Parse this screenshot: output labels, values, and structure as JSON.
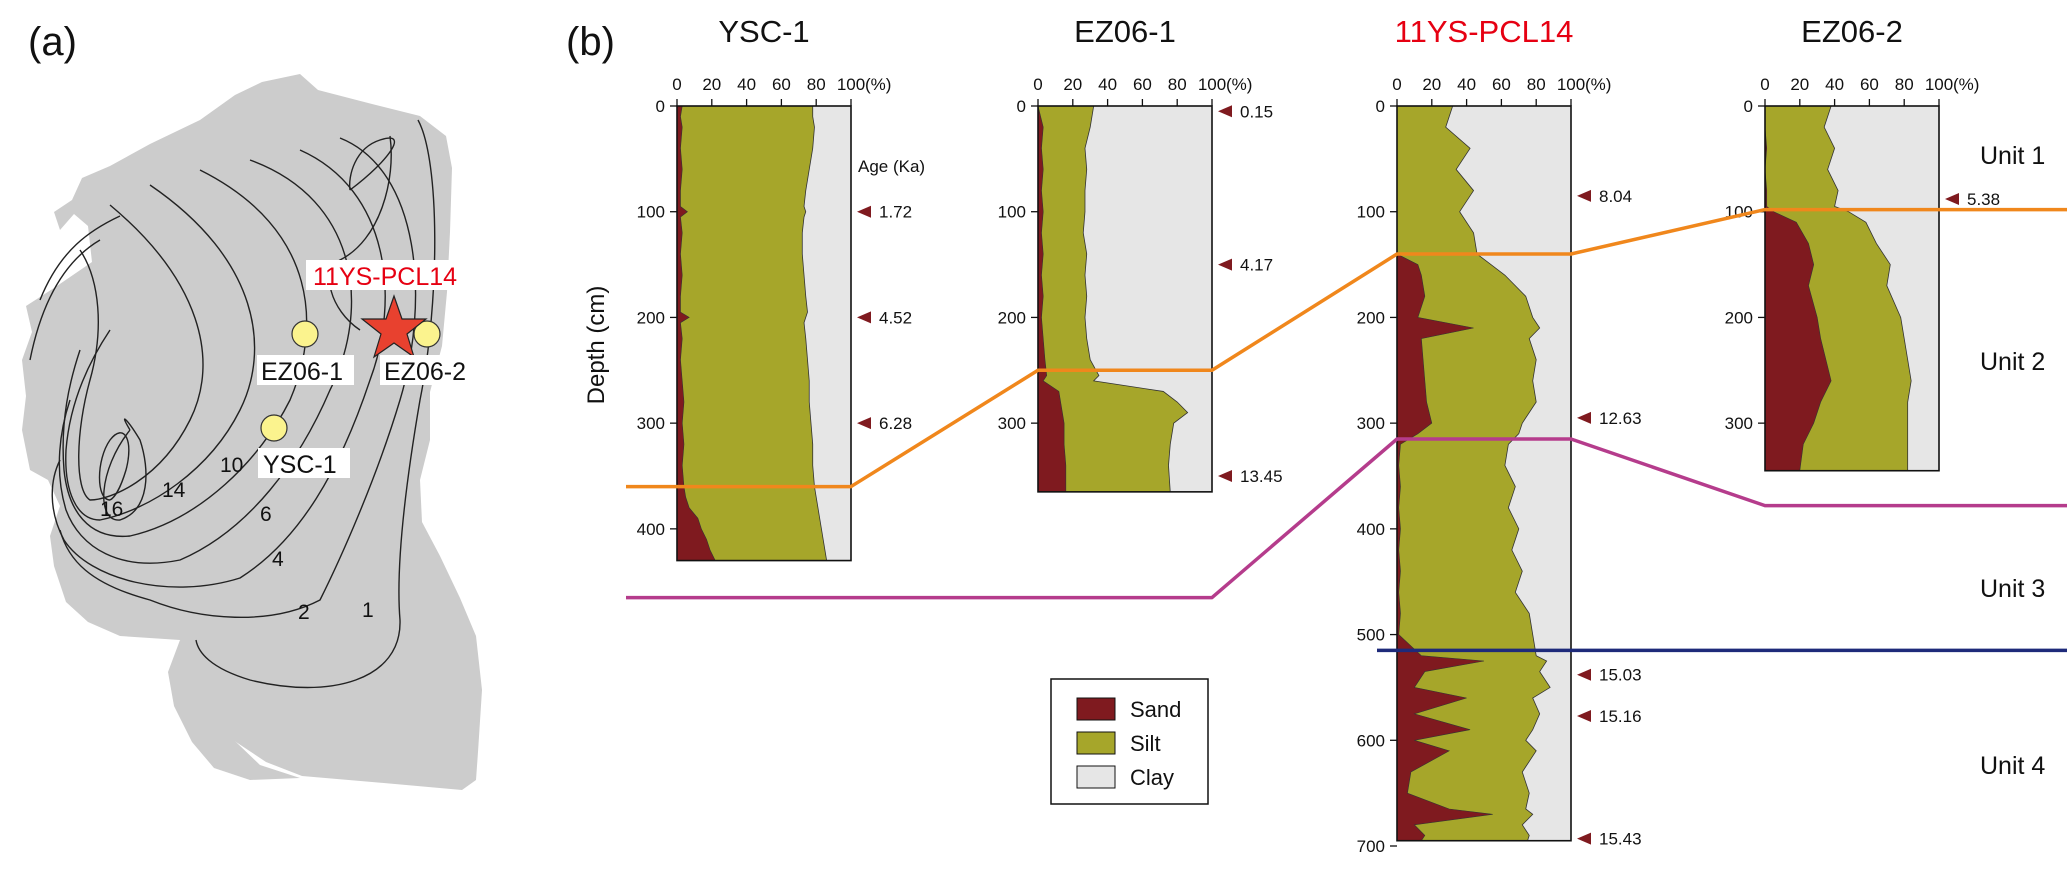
{
  "panels": {
    "a": "(a)",
    "b": "(b)"
  },
  "map": {
    "featured_label": "11YS-PCL14",
    "sites": [
      {
        "name": "EZ06-1"
      },
      {
        "name": "EZ06-2"
      },
      {
        "name": "YSC-1"
      }
    ],
    "contour_labels": [
      "16",
      "14",
      "10",
      "6",
      "4",
      "2",
      "1"
    ],
    "colors": {
      "land": "#cccccc",
      "site": "#fbf38e",
      "star": "#e8412f",
      "featured_label": "#e60012"
    }
  },
  "chart_data": {
    "type": "area",
    "ylabel": "Depth (cm)",
    "age_label": "Age (Ka)",
    "x_ticks": [
      "0",
      "20",
      "40",
      "60",
      "80",
      "100"
    ],
    "x_unit": "(%)",
    "series_names": [
      "Sand",
      "Silt",
      "Clay"
    ],
    "colors": {
      "Sand": "#7f1a1f",
      "Silt": "#a6a62a",
      "Clay": "#e6e6e6"
    },
    "units": [
      "Unit 1",
      "Unit 2",
      "Unit 3",
      "Unit 4"
    ],
    "cores": [
      {
        "name": "YSC-1",
        "highlight": false,
        "ymax": 430,
        "y_ticks": [
          0,
          100,
          200,
          300,
          400
        ],
        "depth": [
          0,
          10,
          20,
          40,
          60,
          80,
          95,
          100,
          105,
          120,
          140,
          160,
          180,
          195,
          200,
          205,
          220,
          240,
          260,
          280,
          300,
          320,
          340,
          360,
          370,
          380,
          390,
          400,
          410,
          420,
          430
        ],
        "sand": [
          3,
          2,
          3,
          2,
          3,
          2,
          2,
          6,
          2,
          3,
          2,
          3,
          2,
          2,
          7,
          2,
          3,
          2,
          3,
          4,
          3,
          4,
          3,
          4,
          5,
          7,
          12,
          14,
          17,
          19,
          22
        ],
        "silt_top": [
          78,
          78,
          79,
          78,
          76,
          74,
          73,
          74,
          73,
          72,
          72,
          73,
          74,
          75,
          74,
          73,
          74,
          75,
          76,
          76,
          77,
          78,
          78,
          79,
          80,
          81,
          82,
          83,
          84,
          85,
          86
        ],
        "ages": [
          {
            "depth": 100,
            "age": "1.72"
          },
          {
            "depth": 200,
            "age": "4.52"
          },
          {
            "depth": 300,
            "age": "6.28"
          }
        ]
      },
      {
        "name": "EZ06-1",
        "highlight": false,
        "ymax": 365,
        "y_ticks": [
          0,
          100,
          200,
          300
        ],
        "depth": [
          0,
          20,
          40,
          60,
          80,
          100,
          120,
          140,
          160,
          180,
          200,
          220,
          240,
          255,
          260,
          270,
          280,
          290,
          300,
          320,
          340,
          365
        ],
        "sand": [
          0,
          3,
          2,
          3,
          2,
          3,
          2,
          3,
          2,
          3,
          2,
          3,
          4,
          5,
          3,
          12,
          13,
          14,
          15,
          15,
          16,
          16
        ],
        "silt_top": [
          32,
          30,
          27,
          28,
          27,
          27,
          26,
          28,
          27,
          28,
          27,
          28,
          30,
          35,
          32,
          72,
          80,
          86,
          78,
          76,
          75,
          76
        ],
        "ages": [
          {
            "depth": 5,
            "age": "0.15"
          },
          {
            "depth": 150,
            "age": "4.17"
          },
          {
            "depth": 350,
            "age": "13.45"
          }
        ]
      },
      {
        "name": "11YS-PCL14",
        "highlight": true,
        "ymax": 695,
        "y_ticks": [
          0,
          100,
          200,
          300,
          400,
          500,
          600,
          700
        ],
        "depth": [
          0,
          20,
          40,
          60,
          80,
          100,
          120,
          140,
          150,
          160,
          180,
          200,
          210,
          220,
          240,
          260,
          280,
          300,
          310,
          320,
          340,
          360,
          380,
          400,
          420,
          440,
          460,
          480,
          500,
          520,
          525,
          535,
          550,
          560,
          575,
          590,
          600,
          610,
          630,
          650,
          665,
          670,
          680,
          690,
          695
        ],
        "sand": [
          0,
          0,
          0,
          0,
          0,
          0,
          0,
          0,
          12,
          14,
          16,
          12,
          44,
          14,
          15,
          16,
          17,
          20,
          12,
          2,
          1,
          2,
          1,
          2,
          1,
          2,
          1,
          2,
          1,
          14,
          50,
          16,
          10,
          40,
          10,
          42,
          10,
          30,
          8,
          6,
          30,
          55,
          10,
          16,
          14
        ],
        "silt_top": [
          32,
          28,
          42,
          34,
          44,
          36,
          44,
          46,
          54,
          62,
          74,
          78,
          82,
          76,
          80,
          78,
          80,
          72,
          70,
          64,
          62,
          68,
          64,
          70,
          66,
          72,
          68,
          76,
          78,
          80,
          86,
          82,
          88,
          78,
          82,
          78,
          74,
          80,
          72,
          76,
          74,
          78,
          72,
          76,
          75
        ],
        "ages": [
          {
            "depth": 85,
            "age": "8.04"
          },
          {
            "depth": 295,
            "age": "12.63"
          },
          {
            "depth": 538,
            "age": "15.03"
          },
          {
            "depth": 577,
            "age": "15.16"
          },
          {
            "depth": 693,
            "age": "15.43"
          }
        ]
      },
      {
        "name": "EZ06-2",
        "highlight": false,
        "ymax": 345,
        "y_ticks": [
          0,
          100,
          200,
          300
        ],
        "depth": [
          0,
          20,
          40,
          60,
          80,
          95,
          100,
          110,
          130,
          150,
          170,
          200,
          220,
          240,
          260,
          280,
          300,
          320,
          345
        ],
        "sand": [
          0,
          0,
          1,
          0,
          1,
          1,
          5,
          18,
          25,
          28,
          25,
          30,
          32,
          35,
          38,
          32,
          28,
          22,
          20
        ],
        "silt_top": [
          38,
          34,
          40,
          36,
          42,
          40,
          48,
          58,
          64,
          72,
          70,
          78,
          80,
          82,
          84,
          82,
          82,
          82,
          82
        ],
        "ages": [
          {
            "depth": 88,
            "age": "5.38"
          }
        ]
      }
    ],
    "boundaries": [
      {
        "name": "unit1-2",
        "color": "#f0871c",
        "depths": [
          360,
          250,
          140,
          98
        ]
      },
      {
        "name": "unit2-3",
        "color": "#b53c8c",
        "depths": [
          465,
          465,
          315,
          378
        ]
      },
      {
        "name": "unit3-4",
        "color": "#1e2a7a",
        "depths": [
          null,
          null,
          515,
          515
        ]
      }
    ]
  }
}
